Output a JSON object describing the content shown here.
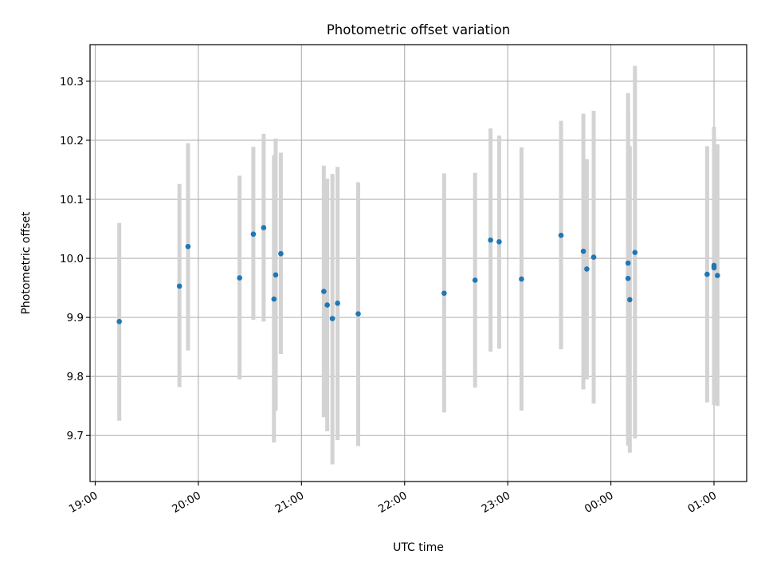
{
  "chart_data": {
    "type": "scatter",
    "title": "Photometric offset variation",
    "xlabel": "UTC time",
    "ylabel": "Photometric offset",
    "grid": true,
    "x_axis_type": "time",
    "xlim": [
      "18:57",
      "01:19"
    ],
    "ylim": [
      9.622,
      10.362
    ],
    "x_ticks": [
      "19:00",
      "20:00",
      "21:00",
      "22:00",
      "23:00",
      "00:00",
      "01:00"
    ],
    "y_ticks": [
      "9.7",
      "9.8",
      "9.9",
      "10.0",
      "10.1",
      "10.2",
      "10.3"
    ],
    "colors": {
      "marker": "#1f77b4",
      "errorbar": "#d3d3d3",
      "grid": "#b0b0b0"
    },
    "series": [
      {
        "points": [
          {
            "x": "19:14",
            "y": 9.893,
            "ylow": 9.725,
            "yhigh": 10.06
          },
          {
            "x": "19:49",
            "y": 9.953,
            "ylow": 9.782,
            "yhigh": 10.126
          },
          {
            "x": "19:54",
            "y": 10.02,
            "ylow": 9.844,
            "yhigh": 10.195
          },
          {
            "x": "20:24",
            "y": 9.967,
            "ylow": 9.795,
            "yhigh": 10.14
          },
          {
            "x": "20:32",
            "y": 10.041,
            "ylow": 9.896,
            "yhigh": 10.189
          },
          {
            "x": "20:38",
            "y": 10.052,
            "ylow": 9.893,
            "yhigh": 10.211
          },
          {
            "x": "20:44",
            "y": 9.931,
            "ylow": 9.688,
            "yhigh": 10.175
          },
          {
            "x": "20:45",
            "y": 9.972,
            "ylow": 9.742,
            "yhigh": 10.203
          },
          {
            "x": "20:48",
            "y": 10.008,
            "ylow": 9.838,
            "yhigh": 10.179
          },
          {
            "x": "21:13",
            "y": 9.944,
            "ylow": 9.731,
            "yhigh": 10.157
          },
          {
            "x": "21:15",
            "y": 9.921,
            "ylow": 9.707,
            "yhigh": 10.135
          },
          {
            "x": "21:18",
            "y": 9.898,
            "ylow": 9.651,
            "yhigh": 10.143
          },
          {
            "x": "21:21",
            "y": 9.924,
            "ylow": 9.692,
            "yhigh": 10.155
          },
          {
            "x": "21:33",
            "y": 9.906,
            "ylow": 9.682,
            "yhigh": 10.129
          },
          {
            "x": "22:23",
            "y": 9.941,
            "ylow": 9.739,
            "yhigh": 10.144
          },
          {
            "x": "22:41",
            "y": 9.963,
            "ylow": 9.781,
            "yhigh": 10.145
          },
          {
            "x": "22:50",
            "y": 10.031,
            "ylow": 9.842,
            "yhigh": 10.22
          },
          {
            "x": "22:55",
            "y": 10.028,
            "ylow": 9.847,
            "yhigh": 10.208
          },
          {
            "x": "23:08",
            "y": 9.965,
            "ylow": 9.742,
            "yhigh": 10.188
          },
          {
            "x": "23:31",
            "y": 10.039,
            "ylow": 9.846,
            "yhigh": 10.233
          },
          {
            "x": "23:44",
            "y": 10.012,
            "ylow": 9.778,
            "yhigh": 10.245
          },
          {
            "x": "23:46",
            "y": 9.982,
            "ylow": 9.795,
            "yhigh": 10.168
          },
          {
            "x": "23:50",
            "y": 10.002,
            "ylow": 9.754,
            "yhigh": 10.25
          },
          {
            "x": "00:10",
            "y": 9.966,
            "ylow": 9.683,
            "yhigh": 10.25
          },
          {
            "x": "00:10",
            "y": 9.992,
            "ylow": 9.702,
            "yhigh": 10.28
          },
          {
            "x": "00:11",
            "y": 9.93,
            "ylow": 9.671,
            "yhigh": 10.19
          },
          {
            "x": "00:14",
            "y": 10.01,
            "ylow": 9.695,
            "yhigh": 10.326
          },
          {
            "x": "00:56",
            "y": 9.973,
            "ylow": 9.756,
            "yhigh": 10.19
          },
          {
            "x": "01:00",
            "y": 9.988,
            "ylow": 9.752,
            "yhigh": 10.223
          },
          {
            "x": "01:00",
            "y": 9.984,
            "ylow": 9.762,
            "yhigh": 10.206
          },
          {
            "x": "01:02",
            "y": 9.971,
            "ylow": 9.75,
            "yhigh": 10.193
          }
        ]
      }
    ]
  }
}
